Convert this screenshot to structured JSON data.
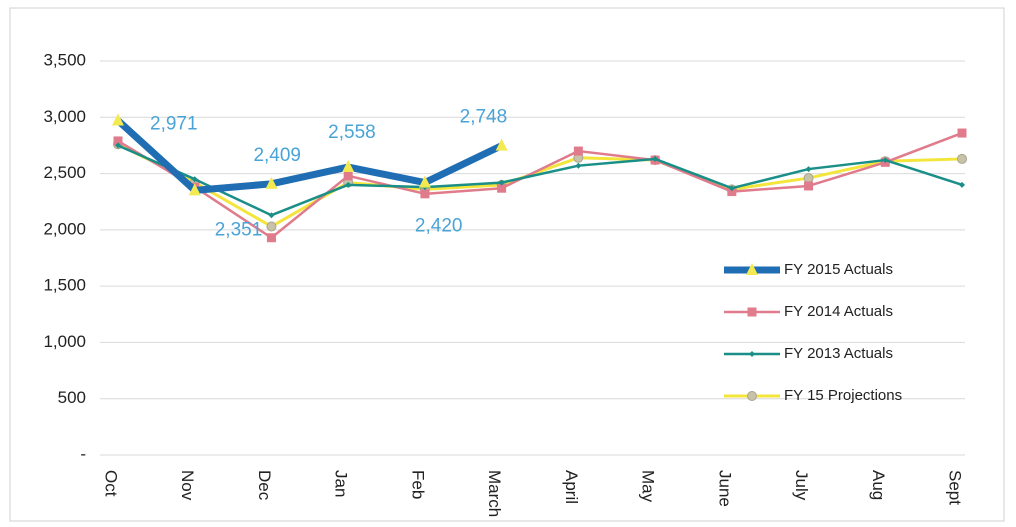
{
  "chart_data": {
    "type": "line",
    "categories": [
      "Oct",
      "Nov",
      "Dec",
      "Jan",
      "Feb",
      "March",
      "April",
      "May",
      "June",
      "July",
      "Aug",
      "Sept"
    ],
    "series": [
      {
        "name": "FY 2015 Actuals",
        "color": "#1f6db3",
        "marker": "triangle",
        "marker_color": "#f2ea50",
        "values": [
          2971,
          2351,
          2409,
          2558,
          2420,
          2748,
          null,
          null,
          null,
          null,
          null,
          null
        ],
        "value_labels": [
          "2,971",
          "2,351",
          "2,409",
          "2,558",
          "2,420",
          "2,748",
          null,
          null,
          null,
          null,
          null,
          null
        ]
      },
      {
        "name": "FY 2014 Actuals",
        "color": "#e07b8c",
        "marker": "square",
        "marker_color": "#e07b8c",
        "values": [
          2790,
          2380,
          1930,
          2480,
          2320,
          2370,
          2700,
          2620,
          2340,
          2390,
          2600,
          2860
        ]
      },
      {
        "name": "FY 2013 Actuals",
        "color": "#1a8f87",
        "marker": "diamond",
        "marker_color": "#1a8f87",
        "values": [
          2750,
          2450,
          2130,
          2400,
          2380,
          2420,
          2570,
          2630,
          2370,
          2540,
          2620,
          2400
        ]
      },
      {
        "name": "FY 15 Projections",
        "color": "#f4e53a",
        "marker": "circle",
        "marker_color": "#c8c3a8",
        "values": [
          2760,
          2420,
          2030,
          2420,
          2360,
          2400,
          2640,
          2620,
          2360,
          2460,
          2610,
          2630
        ]
      }
    ],
    "ylim": [
      0,
      3500
    ],
    "yticks": [
      {
        "value": 0,
        "label": "-"
      },
      500,
      {
        "value": 1000,
        "label": "1,000"
      },
      {
        "value": 1500,
        "label": "1,500"
      },
      {
        "value": 2000,
        "label": "2,000"
      },
      {
        "value": 2500,
        "label": "2,500"
      },
      {
        "value": 3000,
        "label": "3,000"
      },
      {
        "value": 3500,
        "label": "3,500"
      }
    ],
    "grid": true
  }
}
